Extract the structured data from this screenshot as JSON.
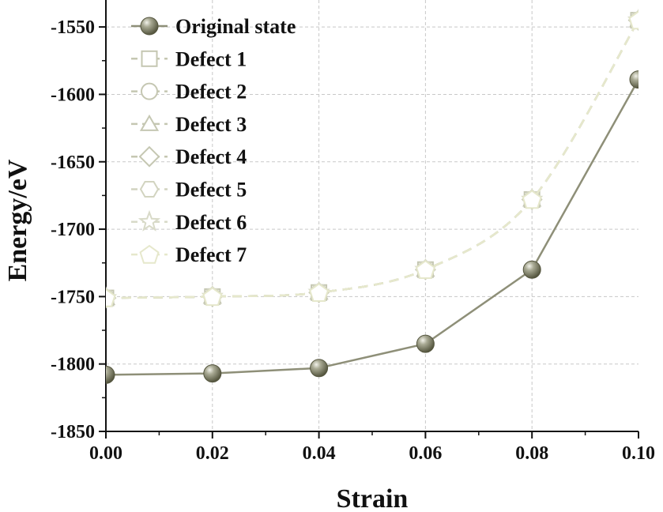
{
  "chart_data": {
    "type": "line",
    "title": "",
    "xlabel": "Strain",
    "ylabel": "Energy/eV",
    "xlim": [
      0.0,
      0.1
    ],
    "ylim": [
      -1850,
      -1530
    ],
    "xticks": [
      0.0,
      0.02,
      0.04,
      0.06,
      0.08,
      0.1
    ],
    "xtick_labels": [
      "0.00",
      "0.02",
      "0.04",
      "0.06",
      "0.08",
      "0.10"
    ],
    "yticks": [
      -1850,
      -1800,
      -1750,
      -1700,
      -1650,
      -1600,
      -1550
    ],
    "ytick_labels": [
      "-1850",
      "-1800",
      "-1750",
      "-1700",
      "-1650",
      "-1600",
      "-1550"
    ],
    "grid": true,
    "legend_position": "top-left",
    "x": [
      0.0,
      0.02,
      0.04,
      0.06,
      0.08,
      0.1
    ],
    "series": [
      {
        "name": "Original state",
        "marker": "sphere",
        "line": "solid",
        "color": "#8e8f78",
        "values": [
          -1808,
          -1807,
          -1803,
          -1785,
          -1730,
          -1589
        ]
      },
      {
        "name": "Defect 1",
        "marker": "square",
        "line": "dashed",
        "color": "#c5c7b2",
        "values": [
          -1751,
          -1750,
          -1747,
          -1730,
          -1678,
          -1545
        ]
      },
      {
        "name": "Defect 2",
        "marker": "circle",
        "line": "dashed",
        "color": "#c5c7b2",
        "values": [
          -1751,
          -1750,
          -1747,
          -1730,
          -1678,
          -1545
        ]
      },
      {
        "name": "Defect 3",
        "marker": "triangle",
        "line": "dashed",
        "color": "#c5c7b2",
        "values": [
          -1751,
          -1750,
          -1747,
          -1730,
          -1678,
          -1545
        ]
      },
      {
        "name": "Defect 4",
        "marker": "diamond",
        "line": "dashed",
        "color": "#c5c7b2",
        "values": [
          -1751,
          -1750,
          -1747,
          -1730,
          -1678,
          -1545
        ]
      },
      {
        "name": "Defect 5",
        "marker": "hexagon",
        "line": "dashed",
        "color": "#d2d4c0",
        "values": [
          -1751,
          -1750,
          -1747,
          -1730,
          -1678,
          -1545
        ]
      },
      {
        "name": "Defect 6",
        "marker": "star",
        "line": "dashed",
        "color": "#d8dac8",
        "values": [
          -1751,
          -1750,
          -1747,
          -1730,
          -1678,
          -1545
        ]
      },
      {
        "name": "Defect 7",
        "marker": "pentagon",
        "line": "dashed",
        "color": "#e6e8cc",
        "values": [
          -1751,
          -1750,
          -1747,
          -1730,
          -1678,
          -1545
        ]
      }
    ]
  }
}
